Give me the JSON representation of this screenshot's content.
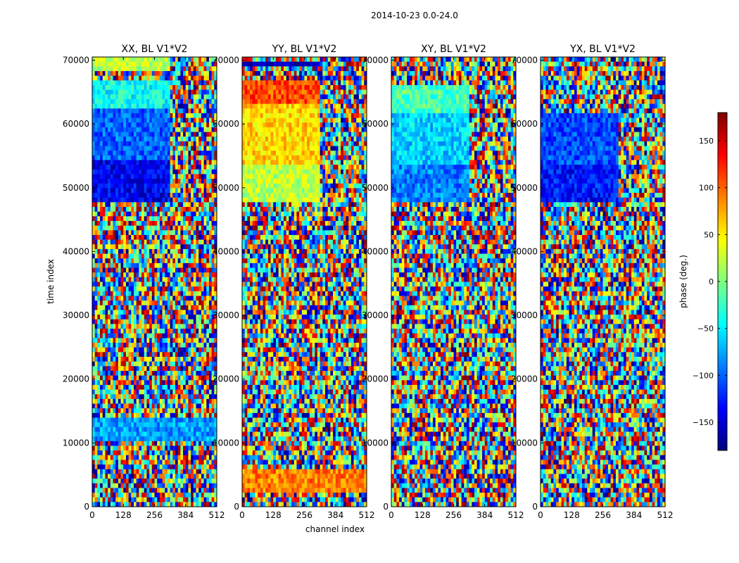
{
  "figure": {
    "suptitle": "2014-10-23 0.0-24.0",
    "xlabel": "channel index",
    "ylabel": "time index"
  },
  "colorbar": {
    "label": "phase (deg.)",
    "range": [
      -180,
      180
    ],
    "ticks": [
      -150,
      -100,
      -50,
      0,
      50,
      100,
      150
    ],
    "colormap": "jet",
    "colors": [
      "#00007f",
      "#0000ff",
      "#007fff",
      "#00ffff",
      "#7fff7f",
      "#ffff00",
      "#ff7f00",
      "#ff0000",
      "#7f0000"
    ]
  },
  "chart_data": [
    {
      "type": "heatmap",
      "title": "XX, BL V1*V2",
      "xlabel": "channel index",
      "ylabel": "time index",
      "xlim": [
        0,
        512
      ],
      "ylim": [
        0,
        70500
      ],
      "xticks": [
        0,
        128,
        256,
        384,
        512
      ],
      "yticks": [
        0,
        10000,
        20000,
        30000,
        40000,
        50000,
        60000,
        70000
      ],
      "value_range": [
        -180,
        180
      ],
      "bias_regions": [
        {
          "t0": 47500,
          "t1": 54000,
          "c0": 0,
          "c1": 320,
          "phase": -140
        },
        {
          "t0": 54000,
          "t1": 62500,
          "c0": 0,
          "c1": 320,
          "phase": -100
        },
        {
          "t0": 62500,
          "t1": 67000,
          "c0": 0,
          "c1": 320,
          "phase": -40
        },
        {
          "t0": 68500,
          "t1": 70500,
          "c0": 0,
          "c1": 320,
          "phase": 20
        },
        {
          "t0": 10000,
          "t1": 14000,
          "c0": 0,
          "c1": 512,
          "phase": -80
        }
      ]
    },
    {
      "type": "heatmap",
      "title": "YY, BL V1*V2",
      "xlabel": "channel index",
      "ylabel": "time index",
      "xlim": [
        0,
        512
      ],
      "ylim": [
        0,
        70500
      ],
      "xticks": [
        0,
        128,
        256,
        384,
        512
      ],
      "yticks": [
        0,
        10000,
        20000,
        30000,
        40000,
        50000,
        60000,
        70000
      ],
      "value_range": [
        -180,
        180
      ],
      "bias_regions": [
        {
          "t0": 47500,
          "t1": 53500,
          "c0": 0,
          "c1": 320,
          "phase": 20
        },
        {
          "t0": 53500,
          "t1": 63000,
          "c0": 0,
          "c1": 320,
          "phase": 60
        },
        {
          "t0": 63000,
          "t1": 67000,
          "c0": 0,
          "c1": 320,
          "phase": 110
        },
        {
          "t0": 68800,
          "t1": 70000,
          "c0": 0,
          "c1": 320,
          "phase": -160
        },
        {
          "t0": 2000,
          "t1": 6000,
          "c0": 0,
          "c1": 512,
          "phase": 90
        }
      ]
    },
    {
      "type": "heatmap",
      "title": "XY, BL V1*V2",
      "xlabel": "channel index",
      "ylabel": "time index",
      "xlim": [
        0,
        512
      ],
      "ylim": [
        0,
        70500
      ],
      "xticks": [
        0,
        128,
        256,
        384,
        512
      ],
      "yticks": [
        0,
        10000,
        20000,
        30000,
        40000,
        50000,
        60000,
        70000
      ],
      "value_range": [
        -180,
        180
      ],
      "bias_regions": [
        {
          "t0": 47500,
          "t1": 53500,
          "c0": 0,
          "c1": 320,
          "phase": -90
        },
        {
          "t0": 53500,
          "t1": 62000,
          "c0": 0,
          "c1": 320,
          "phase": -60
        },
        {
          "t0": 62000,
          "t1": 66000,
          "c0": 0,
          "c1": 320,
          "phase": -20
        }
      ]
    },
    {
      "type": "heatmap",
      "title": "YX, BL V1*V2",
      "xlabel": "channel index",
      "ylabel": "time index",
      "xlim": [
        0,
        512
      ],
      "ylim": [
        0,
        70500
      ],
      "xticks": [
        0,
        128,
        256,
        384,
        512
      ],
      "yticks": [
        0,
        10000,
        20000,
        30000,
        40000,
        50000,
        60000,
        70000
      ],
      "value_range": [
        -180,
        180
      ],
      "bias_regions": [
        {
          "t0": 47500,
          "t1": 53500,
          "c0": 0,
          "c1": 320,
          "phase": -130
        },
        {
          "t0": 53500,
          "t1": 62000,
          "c0": 0,
          "c1": 320,
          "phase": -110
        }
      ]
    }
  ]
}
